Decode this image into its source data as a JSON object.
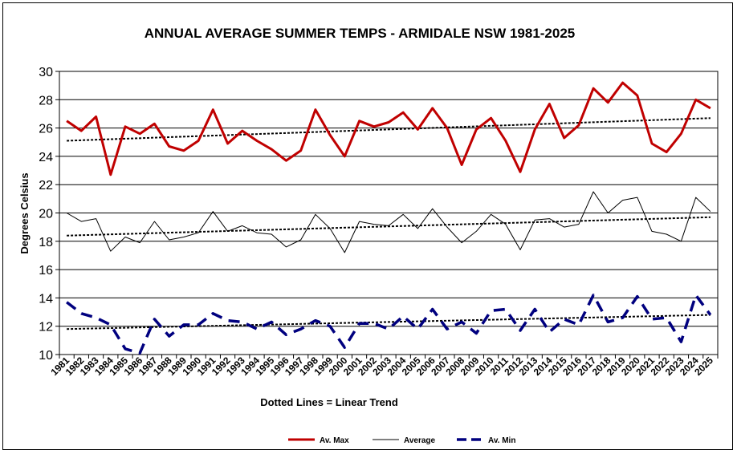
{
  "chart_data": {
    "type": "line",
    "title": "ANNUAL AVERAGE SUMMER TEMPS - ARMIDALE NSW  1981-2025",
    "xlabel": "Dotted Lines = Linear Trend",
    "ylabel": "Degrees Celsius",
    "ylim": [
      10,
      30
    ],
    "yticks": [
      10,
      12,
      14,
      16,
      18,
      20,
      22,
      24,
      26,
      28,
      30
    ],
    "categories": [
      "1981",
      "1982",
      "1983",
      "1984",
      "1985",
      "1986",
      "1987",
      "1988",
      "1989",
      "1990",
      "1991",
      "1992",
      "1993",
      "1994",
      "1995",
      "1996",
      "1997",
      "1998",
      "1999",
      "2000",
      "2001",
      "2002",
      "2003",
      "2004",
      "2005",
      "2006",
      "2007",
      "2008",
      "2009",
      "2010",
      "2011",
      "2012",
      "2013",
      "2014",
      "2015",
      "2016",
      "2017",
      "2018",
      "2019",
      "2020",
      "2021",
      "2022",
      "2023",
      "2024",
      "2025"
    ],
    "grid": "horizontal",
    "legend_position": "bottom",
    "series": [
      {
        "name": "Av. Max",
        "color": "#c00000",
        "style": "solid-thick",
        "values": [
          26.5,
          25.8,
          26.8,
          22.7,
          26.1,
          25.6,
          26.3,
          24.7,
          24.4,
          25.1,
          27.3,
          24.9,
          25.8,
          25.1,
          24.5,
          23.7,
          24.4,
          27.3,
          25.5,
          24.0,
          26.5,
          26.1,
          26.4,
          27.1,
          25.9,
          27.4,
          26.0,
          23.4,
          25.9,
          26.7,
          25.1,
          22.9,
          25.9,
          27.7,
          25.3,
          26.2,
          28.8,
          27.8,
          29.2,
          28.3,
          24.9,
          24.3,
          25.6,
          28.0,
          27.4
        ]
      },
      {
        "name": "Average",
        "color": "#000000",
        "style": "solid-thin",
        "values": [
          20.0,
          19.4,
          19.6,
          17.3,
          18.3,
          17.9,
          19.4,
          18.1,
          18.3,
          18.6,
          20.1,
          18.7,
          19.1,
          18.6,
          18.5,
          17.6,
          18.1,
          19.9,
          18.9,
          17.2,
          19.4,
          19.2,
          19.1,
          19.9,
          18.9,
          20.3,
          19.0,
          17.9,
          18.7,
          19.9,
          19.2,
          17.4,
          19.5,
          19.6,
          19.0,
          19.2,
          21.5,
          20.0,
          20.9,
          21.1,
          18.7,
          18.5,
          18.0,
          21.1,
          20.1
        ]
      },
      {
        "name": "Av. Min",
        "color": "#00007f",
        "style": "dashed-thick",
        "values": [
          13.7,
          12.9,
          12.6,
          12.1,
          10.4,
          10.1,
          12.5,
          11.3,
          12.1,
          12.1,
          12.9,
          12.4,
          12.3,
          11.8,
          12.3,
          11.4,
          11.8,
          12.4,
          12.0,
          10.5,
          12.2,
          12.2,
          11.8,
          12.7,
          11.8,
          13.2,
          11.8,
          12.3,
          11.5,
          13.1,
          13.2,
          11.7,
          13.2,
          11.6,
          12.5,
          12.1,
          14.2,
          12.3,
          12.6,
          14.1,
          12.5,
          12.6,
          10.9,
          14.2,
          12.8
        ]
      }
    ],
    "trends": [
      {
        "name": "Av. Max trend",
        "from": 25.1,
        "to": 26.7
      },
      {
        "name": "Average trend",
        "from": 18.4,
        "to": 19.7
      },
      {
        "name": "Av. Min trend",
        "from": 11.8,
        "to": 12.8
      }
    ]
  }
}
